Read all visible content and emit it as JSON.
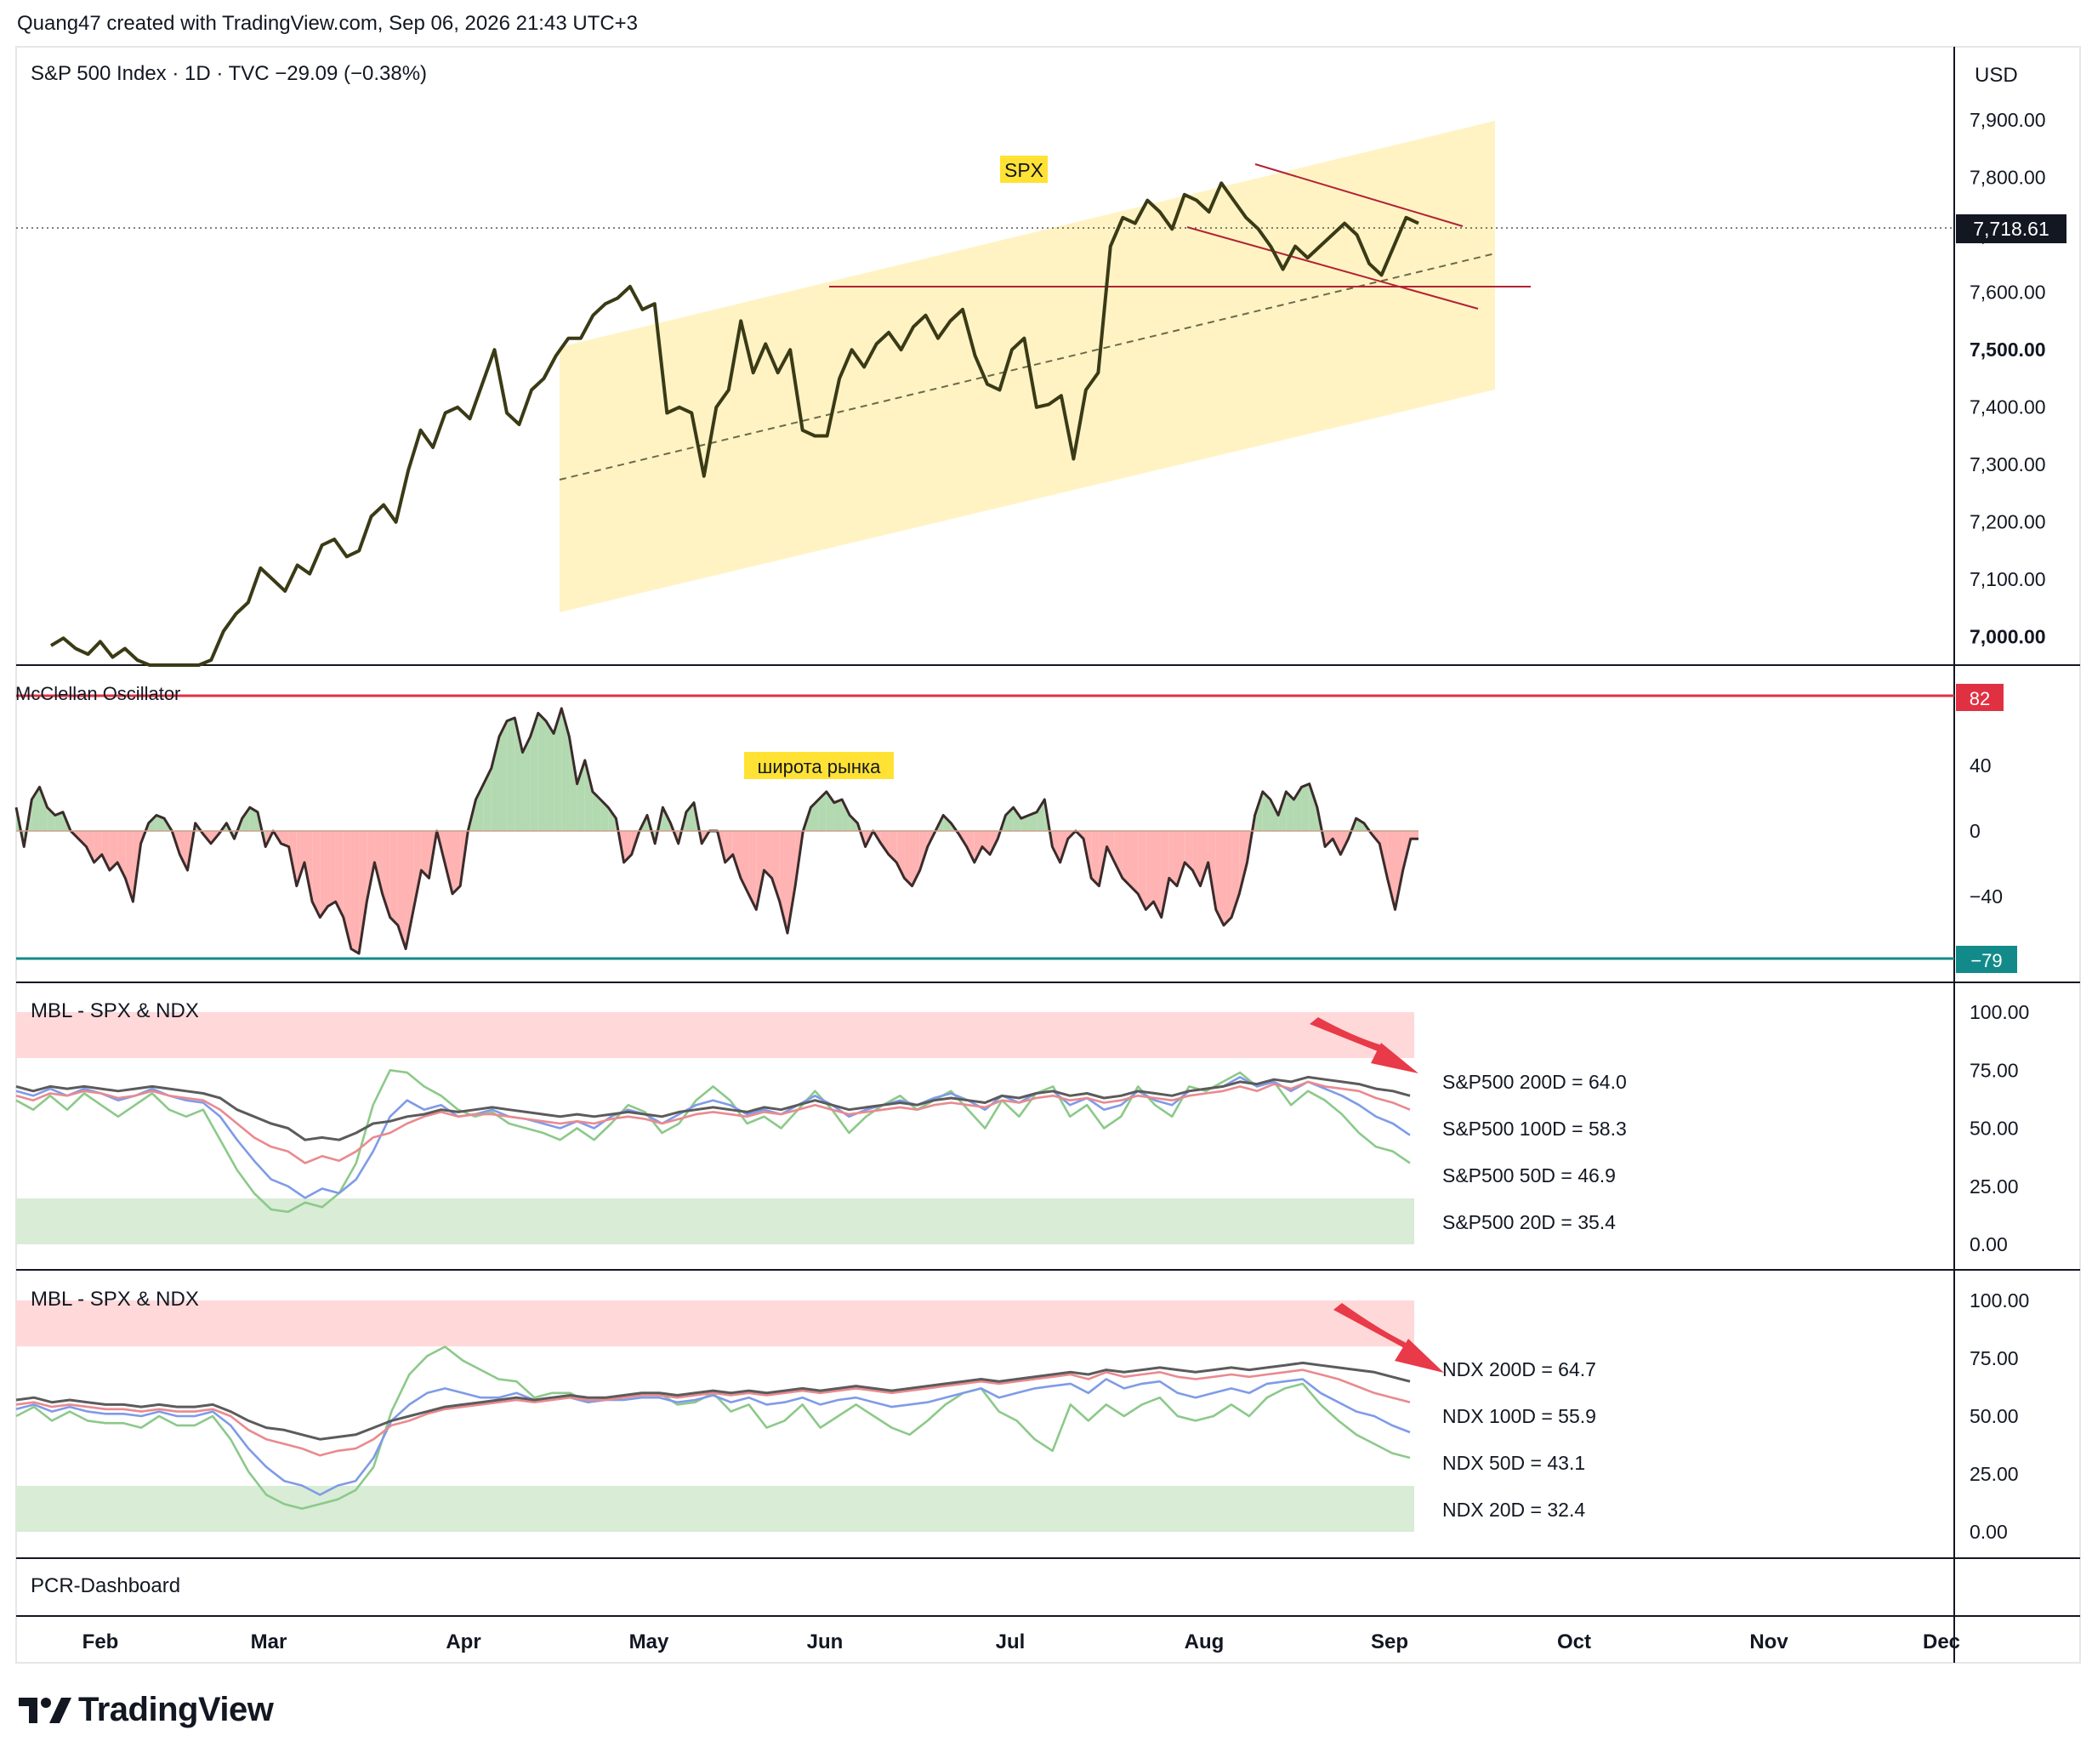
{
  "header": {
    "text": "Quang47 created with TradingView.com, Sep 06, 2026 21:43 UTC+3"
  },
  "footer": {
    "brand": "TradingView"
  },
  "colors": {
    "channel_fill": "#fff3c4",
    "price_line": "#3a3a16",
    "resistance": "#b22234",
    "osc_pos": "#b3d9b1",
    "osc_neg": "#ffb3b3",
    "upper_band": "#e03143",
    "lower_band": "#138a8a",
    "mbl_red_zone": "#ffd9d9",
    "mbl_green_zone": "#d9ecd6",
    "s200": "#5b5b5b",
    "s100": "#e98a8f",
    "s50": "#7f9be8",
    "s20": "#8cc98a",
    "arrow": "#e83a48"
  },
  "chart_data": [
    {
      "type": "line",
      "title": "S&P 500 Index · 1D · TVC  −29.09 (−0.38%)",
      "currency": "USD",
      "annotation": "SPX",
      "last_price": "7,718.61",
      "yticks": [
        "7,900.00",
        "7,800.00",
        "7,700.00",
        "7,600.00",
        "7,500.00",
        "7,400.00",
        "7,300.00",
        "7,200.00",
        "7,100.00",
        "7,000.00"
      ],
      "ylim": [
        6950,
        7980
      ],
      "series": [
        {
          "values": [
            6985,
            6998,
            6980,
            6970,
            6992,
            6965,
            6980,
            6960,
            6945,
            6930,
            6925,
            6935,
            6950,
            6960,
            7010,
            7040,
            7060,
            7120,
            7100,
            7080,
            7125,
            7110,
            7160,
            7170,
            7140,
            7150,
            7210,
            7230,
            7200,
            7290,
            7360,
            7330,
            7390,
            7400,
            7380,
            7440,
            7500,
            7390,
            7370,
            7430,
            7450,
            7490,
            7520,
            7520,
            7560,
            7580,
            7590,
            7610,
            7570,
            7580,
            7390,
            7400,
            7390,
            7280,
            7400,
            7430,
            7550,
            7460,
            7510,
            7460,
            7500,
            7360,
            7350,
            7350,
            7450,
            7500,
            7470,
            7510,
            7530,
            7500,
            7540,
            7560,
            7520,
            7550,
            7570,
            7490,
            7440,
            7430,
            7500,
            7520,
            7400,
            7405,
            7420,
            7310,
            7430,
            7460,
            7680,
            7730,
            7720,
            7760,
            7740,
            7710,
            7770,
            7760,
            7740,
            7790,
            7760,
            7730,
            7710,
            7680,
            7640,
            7680,
            7660,
            7680,
            7700,
            7720,
            7700,
            7650,
            7630,
            7680,
            7730,
            7720
          ]
        }
      ]
    },
    {
      "type": "area",
      "title": "McClellan Oscillator",
      "annotation": "широта рынка",
      "upper_band": "82",
      "lower_band": "−79",
      "yticks": [
        "40",
        "0",
        "−40"
      ],
      "ylim": [
        -82,
        85
      ],
      "series": [
        {
          "values": [
            15,
            -10,
            20,
            28,
            15,
            10,
            12,
            0,
            -5,
            -10,
            -20,
            -15,
            -25,
            -20,
            -30,
            -45,
            -8,
            5,
            10,
            8,
            0,
            -15,
            -25,
            5,
            -2,
            -8,
            -2,
            5,
            -5,
            8,
            15,
            12,
            -10,
            0,
            -8,
            -10,
            -35,
            -20,
            -45,
            -55,
            -48,
            -45,
            -55,
            -75,
            -78,
            -45,
            -20,
            -40,
            -55,
            -60,
            -75,
            -50,
            -25,
            -30,
            0,
            -20,
            -40,
            -35,
            0,
            20,
            30,
            40,
            60,
            70,
            72,
            50,
            60,
            75,
            70,
            62,
            78,
            60,
            30,
            45,
            25,
            20,
            15,
            8,
            -20,
            -15,
            0,
            10,
            -8,
            15,
            5,
            -8,
            12,
            18,
            -8,
            0,
            0,
            -20,
            -15,
            -30,
            -40,
            -50,
            -25,
            -30,
            -45,
            -65,
            -35,
            0,
            15,
            20,
            25,
            18,
            20,
            10,
            5,
            -10,
            0,
            -8,
            -15,
            -20,
            -30,
            -35,
            -25,
            -10,
            0,
            10,
            5,
            -2,
            -10,
            -20,
            -10,
            -15,
            -5,
            10,
            15,
            8,
            10,
            12,
            20,
            -10,
            -20,
            -5,
            0,
            -5,
            -30,
            -35,
            -10,
            -20,
            -30,
            -35,
            -40,
            -50,
            -45,
            -55,
            -30,
            -35,
            -20,
            -25,
            -35,
            -20,
            -50,
            -60,
            -55,
            -40,
            -20,
            10,
            25,
            20,
            10,
            25,
            20,
            28,
            30,
            15,
            -10,
            -5,
            -15,
            -5,
            8,
            5,
            -2,
            -8,
            -30,
            -50,
            -25,
            -5,
            -5
          ]
        }
      ]
    },
    {
      "type": "line",
      "title": "MBL - SPX & NDX",
      "yticks": [
        "100.00",
        "75.00",
        "50.00",
        "25.00",
        "0.00"
      ],
      "ylim": [
        0,
        100
      ],
      "series": [
        {
          "name": "S&P500 200D = 64.0",
          "label": "S&P500 200D = 64.0",
          "values": [
            68,
            66,
            68,
            67,
            68,
            67,
            66,
            67,
            68,
            67,
            66,
            65,
            63,
            58,
            55,
            52,
            50,
            45,
            46,
            45,
            48,
            52,
            53,
            55,
            56,
            58,
            57,
            58,
            59,
            58,
            57,
            56,
            55,
            56,
            55,
            56,
            57,
            56,
            55,
            57,
            58,
            59,
            58,
            57,
            59,
            58,
            60,
            62,
            60,
            58,
            59,
            60,
            61,
            60,
            62,
            63,
            62,
            61,
            64,
            63,
            65,
            66,
            64,
            65,
            63,
            64,
            66,
            65,
            64,
            66,
            67,
            68,
            70,
            69,
            71,
            70,
            72,
            71,
            70,
            69,
            67,
            66,
            64
          ]
        },
        {
          "name": "S&P500 100D = 58.3",
          "label": "S&P500 100D = 58.3",
          "values": [
            64,
            62,
            65,
            64,
            66,
            65,
            63,
            64,
            66,
            64,
            63,
            62,
            58,
            52,
            46,
            42,
            40,
            35,
            38,
            36,
            40,
            46,
            48,
            52,
            55,
            57,
            55,
            56,
            56,
            55,
            54,
            53,
            52,
            53,
            52,
            54,
            55,
            54,
            52,
            54,
            56,
            57,
            56,
            55,
            57,
            56,
            58,
            60,
            58,
            56,
            57,
            58,
            59,
            58,
            60,
            61,
            60,
            59,
            62,
            61,
            63,
            64,
            62,
            63,
            61,
            62,
            64,
            63,
            62,
            64,
            65,
            66,
            68,
            66,
            69,
            67,
            70,
            68,
            67,
            66,
            63,
            61,
            58
          ]
        },
        {
          "name": "S&P500 50D = 46.9",
          "label": "S&P500 50D = 46.9",
          "values": [
            66,
            64,
            67,
            64,
            67,
            65,
            62,
            64,
            67,
            64,
            62,
            61,
            55,
            45,
            36,
            28,
            25,
            20,
            24,
            22,
            28,
            40,
            55,
            62,
            58,
            60,
            55,
            56,
            58,
            55,
            54,
            52,
            50,
            53,
            50,
            55,
            58,
            56,
            52,
            56,
            60,
            62,
            60,
            56,
            58,
            56,
            60,
            64,
            60,
            55,
            58,
            60,
            62,
            60,
            63,
            65,
            62,
            58,
            64,
            61,
            65,
            66,
            60,
            63,
            58,
            60,
            66,
            62,
            60,
            66,
            67,
            68,
            72,
            68,
            70,
            66,
            70,
            67,
            64,
            60,
            55,
            52,
            47
          ]
        },
        {
          "name": "S&P500 20D = 35.4",
          "label": "S&P500 20D = 35.4",
          "values": [
            62,
            58,
            64,
            58,
            65,
            60,
            55,
            60,
            65,
            58,
            55,
            58,
            45,
            32,
            22,
            15,
            14,
            18,
            16,
            22,
            35,
            60,
            75,
            74,
            68,
            64,
            58,
            55,
            57,
            52,
            50,
            48,
            45,
            50,
            45,
            52,
            60,
            57,
            48,
            52,
            62,
            68,
            62,
            52,
            55,
            50,
            58,
            66,
            58,
            48,
            55,
            60,
            64,
            58,
            62,
            66,
            58,
            50,
            62,
            55,
            65,
            68,
            55,
            60,
            50,
            55,
            68,
            60,
            55,
            68,
            66,
            70,
            74,
            68,
            70,
            60,
            66,
            62,
            56,
            48,
            42,
            40,
            35
          ]
        }
      ]
    },
    {
      "type": "line",
      "title": "MBL - SPX & NDX",
      "yticks": [
        "100.00",
        "75.00",
        "50.00",
        "25.00",
        "0.00"
      ],
      "ylim": [
        0,
        100
      ],
      "series": [
        {
          "name": "NDX 200D = 64.7",
          "label": "NDX 200D = 64.7",
          "values": [
            57,
            58,
            56,
            57,
            56,
            55,
            55,
            54,
            55,
            54,
            54,
            55,
            52,
            48,
            45,
            44,
            42,
            40,
            41,
            42,
            45,
            48,
            50,
            52,
            54,
            55,
            56,
            57,
            58,
            57,
            58,
            59,
            58,
            58,
            59,
            60,
            60,
            59,
            60,
            61,
            60,
            61,
            60,
            61,
            62,
            61,
            62,
            63,
            62,
            61,
            62,
            63,
            64,
            65,
            66,
            65,
            66,
            67,
            68,
            69,
            68,
            70,
            69,
            70,
            71,
            70,
            69,
            70,
            71,
            70,
            71,
            72,
            73,
            72,
            71,
            70,
            69,
            67,
            65
          ]
        },
        {
          "name": "NDX 100D = 55.9",
          "label": "NDX 100D = 55.9",
          "values": [
            55,
            56,
            54,
            55,
            54,
            53,
            53,
            52,
            53,
            52,
            52,
            53,
            50,
            44,
            40,
            38,
            36,
            33,
            35,
            36,
            40,
            46,
            48,
            51,
            53,
            54,
            55,
            56,
            57,
            56,
            57,
            58,
            57,
            57,
            58,
            59,
            59,
            58,
            59,
            60,
            59,
            60,
            59,
            60,
            61,
            60,
            61,
            62,
            61,
            60,
            61,
            62,
            63,
            64,
            65,
            64,
            65,
            66,
            67,
            68,
            66,
            69,
            67,
            68,
            69,
            67,
            66,
            67,
            68,
            67,
            68,
            69,
            70,
            68,
            66,
            63,
            60,
            58,
            56
          ]
        },
        {
          "name": "NDX 50D = 43.1",
          "label": "NDX 50D = 43.1",
          "values": [
            53,
            55,
            52,
            54,
            52,
            51,
            51,
            50,
            52,
            50,
            50,
            52,
            46,
            36,
            28,
            22,
            20,
            16,
            20,
            22,
            32,
            48,
            55,
            60,
            62,
            60,
            58,
            58,
            60,
            57,
            58,
            58,
            56,
            57,
            57,
            58,
            58,
            56,
            57,
            59,
            56,
            58,
            55,
            56,
            58,
            55,
            57,
            58,
            56,
            54,
            55,
            56,
            58,
            60,
            62,
            58,
            60,
            62,
            63,
            64,
            60,
            66,
            62,
            64,
            65,
            60,
            58,
            60,
            62,
            60,
            64,
            65,
            66,
            60,
            56,
            52,
            50,
            46,
            43
          ]
        },
        {
          "name": "NDX 20D = 32.4",
          "label": "NDX 20D = 32.4",
          "values": [
            50,
            54,
            48,
            52,
            48,
            47,
            47,
            45,
            50,
            46,
            46,
            50,
            40,
            26,
            16,
            12,
            10,
            12,
            14,
            18,
            28,
            52,
            68,
            76,
            80,
            74,
            70,
            66,
            65,
            58,
            60,
            60,
            56,
            58,
            58,
            60,
            60,
            55,
            56,
            60,
            52,
            55,
            45,
            48,
            55,
            45,
            50,
            55,
            50,
            45,
            42,
            48,
            55,
            60,
            62,
            52,
            48,
            40,
            35,
            55,
            48,
            55,
            50,
            55,
            58,
            50,
            48,
            50,
            55,
            50,
            58,
            62,
            64,
            55,
            48,
            42,
            38,
            34,
            32
          ]
        }
      ]
    },
    {
      "type": "table",
      "title": "PCR-Dashboard"
    }
  ],
  "x_axis": {
    "months": [
      "Feb",
      "Mar",
      "Apr",
      "May",
      "Jun",
      "Jul",
      "Aug",
      "Sep",
      "Oct",
      "Nov",
      "Dec"
    ]
  }
}
